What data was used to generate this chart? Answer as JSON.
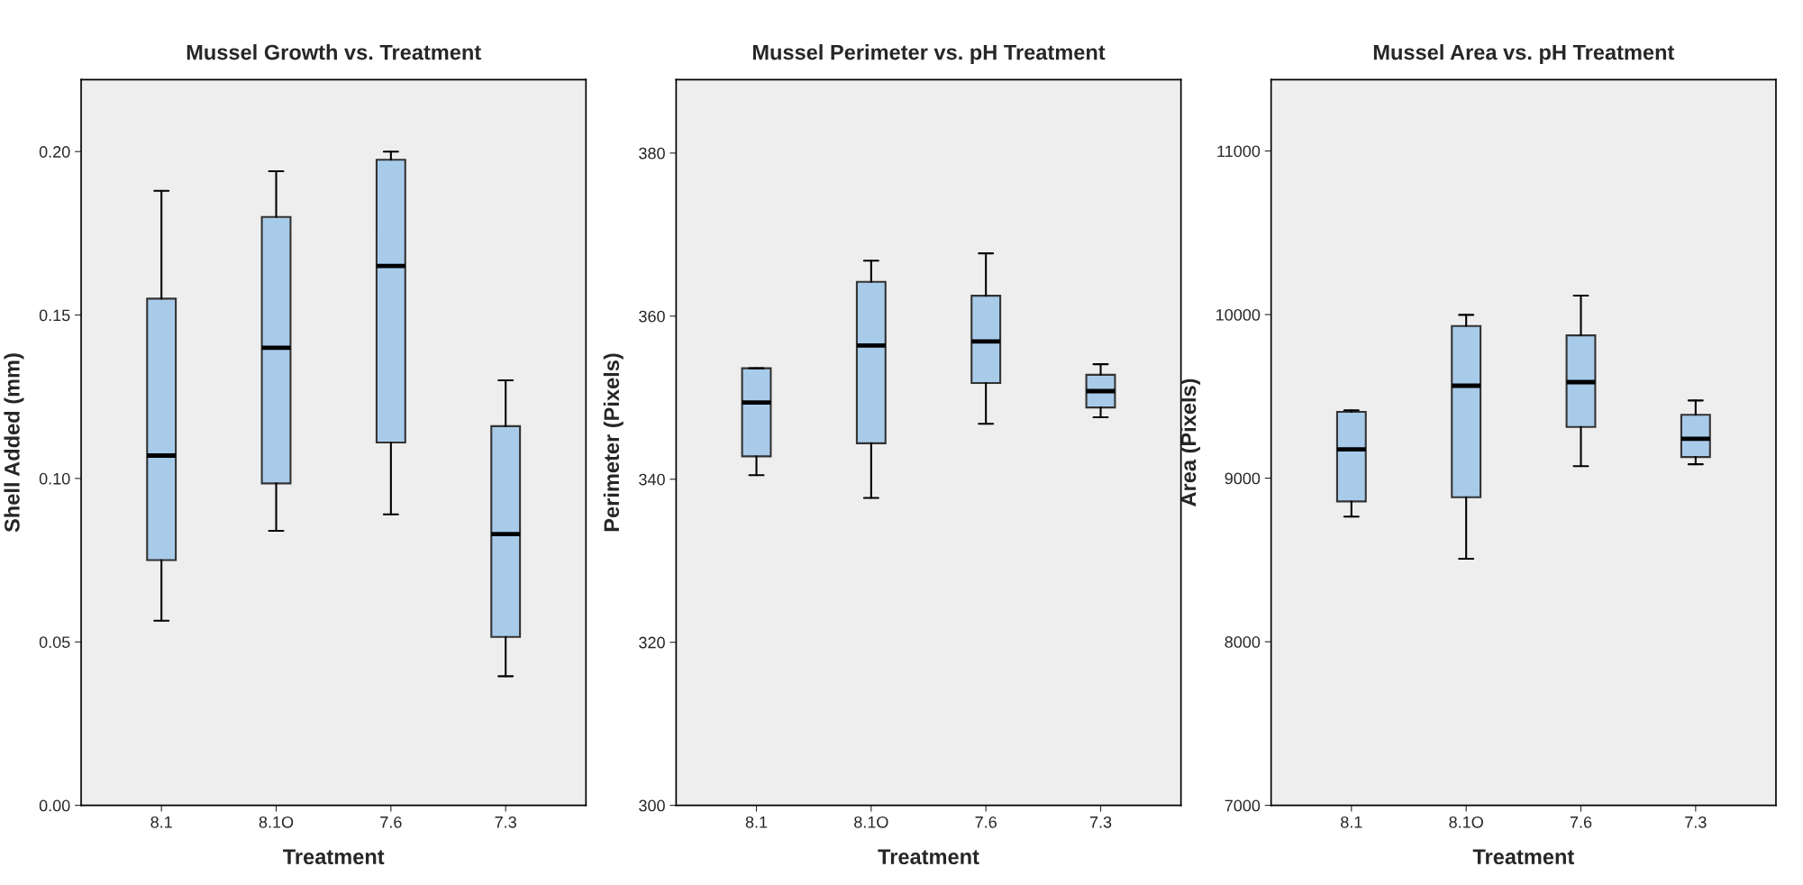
{
  "chart_data": [
    {
      "type": "box",
      "title": "Mussel Growth vs. Treatment",
      "xlabel": "Treatment",
      "ylabel": "Shell Added (mm)",
      "categories": [
        "8.1",
        "8.1O",
        "7.6",
        "7.3"
      ],
      "color": "#a9cbea",
      "boxes": [
        {
          "low": 0.0565,
          "q1": 0.075,
          "median": 0.107,
          "q3": 0.155,
          "high": 0.188
        },
        {
          "low": 0.084,
          "q1": 0.0985,
          "median": 0.14,
          "q3": 0.18,
          "high": 0.194
        },
        {
          "low": 0.089,
          "q1": 0.111,
          "median": 0.165,
          "q3": 0.1975,
          "high": 0.2
        },
        {
          "low": 0.0395,
          "q1": 0.0515,
          "median": 0.083,
          "q3": 0.116,
          "high": 0.13
        }
      ],
      "ylim": [
        0,
        0.222
      ],
      "yticks": [
        {
          "value": 0,
          "label": "0.00"
        },
        {
          "value": 0.05,
          "label": "0.05"
        },
        {
          "value": 0.1,
          "label": "0.10"
        },
        {
          "value": 0.15,
          "label": "0.15"
        },
        {
          "value": 0.2,
          "label": "0.20"
        }
      ]
    },
    {
      "type": "box",
      "title": "Mussel Perimeter vs. pH Treatment",
      "xlabel": "Treatment",
      "ylabel": "Perimeter (Pixels)",
      "categories": [
        "8.1",
        "8.1O",
        "7.6",
        "7.3"
      ],
      "color": "#a9cbea",
      "boxes": [
        {
          "low": 340.5,
          "q1": 342.8,
          "median": 349.4,
          "q3": 353.6,
          "high": 353.6
        },
        {
          "low": 337.7,
          "q1": 344.4,
          "median": 356.4,
          "q3": 364.2,
          "high": 366.8
        },
        {
          "low": 346.8,
          "q1": 351.8,
          "median": 356.9,
          "q3": 362.5,
          "high": 367.7
        },
        {
          "low": 347.6,
          "q1": 348.8,
          "median": 350.8,
          "q3": 352.8,
          "high": 354.1
        }
      ],
      "ylim": [
        300,
        389
      ],
      "yticks": [
        300,
        320,
        340,
        360,
        380
      ]
    },
    {
      "type": "box",
      "title": "Mussel Area vs. pH Treatment",
      "xlabel": "Treatment",
      "ylabel": "Area (Pixels)",
      "categories": [
        "8.1",
        "8.1O",
        "7.6",
        "7.3"
      ],
      "color": "#a9cbea",
      "boxes": [
        {
          "low": 8765,
          "q1": 8858,
          "median": 9176,
          "q3": 9405,
          "high": 9415
        },
        {
          "low": 8507,
          "q1": 8883,
          "median": 9565,
          "q3": 9930,
          "high": 9998
        },
        {
          "low": 9073,
          "q1": 9313,
          "median": 9587,
          "q3": 9873,
          "high": 10116
        },
        {
          "low": 9085,
          "q1": 9129,
          "median": 9241,
          "q3": 9387,
          "high": 9475
        }
      ],
      "ylim": [
        7000,
        11436
      ],
      "yticks": [
        7000,
        8000,
        9000,
        10000,
        11000
      ]
    }
  ]
}
